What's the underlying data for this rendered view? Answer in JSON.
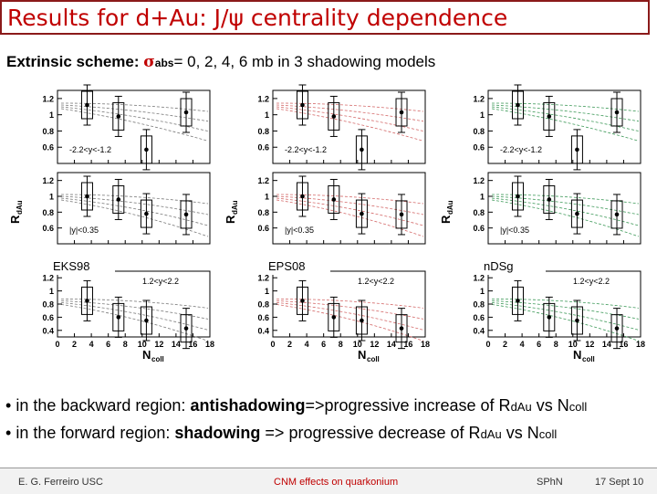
{
  "title": "Results for d+Au: J/ψ centrality dependence",
  "subtitle": {
    "prefix": "Extrinsic scheme: ",
    "sigma": "σ",
    "sigma_sub": "abs",
    "suffix": "= 0, 2, 4, 6 mb in 3 shadowing models"
  },
  "bullets": [
    {
      "bullet": "•",
      "pre": " in the backward region: ",
      "bold": "antishadowing",
      "post": "=>progressive increase  of R",
      "sub": "dAu",
      "mid": " vs N",
      "sub2": "coll"
    },
    {
      "bullet": "•",
      "pre": " in the forward region: ",
      "bold": "shadowing",
      "post": "  => progressive decrease of R",
      "sub": "dAu",
      "mid": "  vs N",
      "sub2": "coll"
    }
  ],
  "footer": {
    "author": "E. G. Ferreiro USC",
    "talk": "CNM effects on quarkonium",
    "venue": "SPhN",
    "date": "17 Sept 10"
  },
  "chart_data": [
    {
      "type": "scatter",
      "model": "EKS98",
      "color": "#7a7a7a",
      "ylabel": "R",
      "ylabel_sub": "dAu",
      "xlabel": "N",
      "xlabel_sub": "coll",
      "x_ticks": [
        "0",
        "2",
        "4",
        "6",
        "8",
        "10",
        "12",
        "14",
        "16",
        "18"
      ],
      "xlim": [
        0,
        18
      ],
      "rows": [
        {
          "label": "-2.2<y<-1.2",
          "ylim": [
            0.4,
            1.3
          ],
          "y_ticks": [
            "0.6",
            "0.8",
            "1",
            "1.2"
          ],
          "points": [
            {
              "x": 3.5,
              "y": 1.12
            },
            {
              "x": 7.2,
              "y": 0.98
            },
            {
              "x": 10.5,
              "y": 0.57
            },
            {
              "x": 15.2,
              "y": 1.03
            }
          ]
        },
        {
          "label": "|y|<0.35",
          "ylim": [
            0.4,
            1.3
          ],
          "y_ticks": [
            "0.6",
            "0.8",
            "1",
            "1.2"
          ],
          "points": [
            {
              "x": 3.5,
              "y": 1.0
            },
            {
              "x": 7.2,
              "y": 0.96
            },
            {
              "x": 10.5,
              "y": 0.78
            },
            {
              "x": 15.2,
              "y": 0.77
            }
          ]
        },
        {
          "label": "1.2<y<2.2",
          "ylim": [
            0.3,
            1.3
          ],
          "y_ticks": [
            "0.4",
            "0.6",
            "0.8",
            "1",
            "1.2"
          ],
          "points": [
            {
              "x": 3.5,
              "y": 0.85
            },
            {
              "x": 7.2,
              "y": 0.6
            },
            {
              "x": 10.5,
              "y": 0.55
            },
            {
              "x": 15.2,
              "y": 0.43
            }
          ]
        }
      ]
    },
    {
      "type": "scatter",
      "model": "EPS08",
      "color": "#d46a6a",
      "ylabel": "R",
      "ylabel_sub": "dAu",
      "xlabel": "N",
      "xlabel_sub": "coll",
      "x_ticks": [
        "0",
        "2",
        "4",
        "6",
        "8",
        "10",
        "12",
        "14",
        "16",
        "18"
      ],
      "xlim": [
        0,
        18
      ],
      "rows": [
        {
          "label": "-2.2<y<-1.2",
          "ylim": [
            0.4,
            1.3
          ],
          "y_ticks": [
            "0.6",
            "0.8",
            "1",
            "1.2"
          ],
          "points": [
            {
              "x": 3.5,
              "y": 1.12
            },
            {
              "x": 7.2,
              "y": 0.98
            },
            {
              "x": 10.5,
              "y": 0.57
            },
            {
              "x": 15.2,
              "y": 1.03
            }
          ]
        },
        {
          "label": "|y|<0.35",
          "ylim": [
            0.4,
            1.3
          ],
          "y_ticks": [
            "0.6",
            "0.8",
            "1",
            "1.2"
          ],
          "points": [
            {
              "x": 3.5,
              "y": 1.0
            },
            {
              "x": 7.2,
              "y": 0.96
            },
            {
              "x": 10.5,
              "y": 0.78
            },
            {
              "x": 15.2,
              "y": 0.77
            }
          ]
        },
        {
          "label": "1.2<y<2.2",
          "ylim": [
            0.3,
            1.3
          ],
          "y_ticks": [
            "0.4",
            "0.6",
            "0.8",
            "1",
            "1.2"
          ],
          "points": [
            {
              "x": 3.5,
              "y": 0.85
            },
            {
              "x": 7.2,
              "y": 0.6
            },
            {
              "x": 10.5,
              "y": 0.55
            },
            {
              "x": 15.2,
              "y": 0.43
            }
          ]
        }
      ]
    },
    {
      "type": "scatter",
      "model": "nDSg",
      "color": "#3f9a5a",
      "ylabel": "R",
      "ylabel_sub": "dAu",
      "xlabel": "N",
      "xlabel_sub": "coll",
      "x_ticks": [
        "0",
        "2",
        "4",
        "6",
        "8",
        "10",
        "12",
        "14",
        "16",
        "18"
      ],
      "xlim": [
        0,
        18
      ],
      "rows": [
        {
          "label": "-2.2<y<-1.2",
          "ylim": [
            0.4,
            1.3
          ],
          "y_ticks": [
            "0.6",
            "0.8",
            "1",
            "1.2"
          ],
          "points": [
            {
              "x": 3.5,
              "y": 1.12
            },
            {
              "x": 7.2,
              "y": 0.98
            },
            {
              "x": 10.5,
              "y": 0.57
            },
            {
              "x": 15.2,
              "y": 1.03
            }
          ]
        },
        {
          "label": "|y|<0.35",
          "ylim": [
            0.4,
            1.3
          ],
          "y_ticks": [
            "0.6",
            "0.8",
            "1",
            "1.2"
          ],
          "points": [
            {
              "x": 3.5,
              "y": 1.0
            },
            {
              "x": 7.2,
              "y": 0.96
            },
            {
              "x": 10.5,
              "y": 0.78
            },
            {
              "x": 15.2,
              "y": 0.77
            }
          ]
        },
        {
          "label": "1.2<y<2.2",
          "ylim": [
            0.3,
            1.3
          ],
          "y_ticks": [
            "0.4",
            "0.6",
            "0.8",
            "1",
            "1.2"
          ],
          "points": [
            {
              "x": 3.5,
              "y": 0.85
            },
            {
              "x": 7.2,
              "y": 0.6
            },
            {
              "x": 10.5,
              "y": 0.55
            },
            {
              "x": 15.2,
              "y": 0.43
            }
          ]
        }
      ]
    }
  ]
}
